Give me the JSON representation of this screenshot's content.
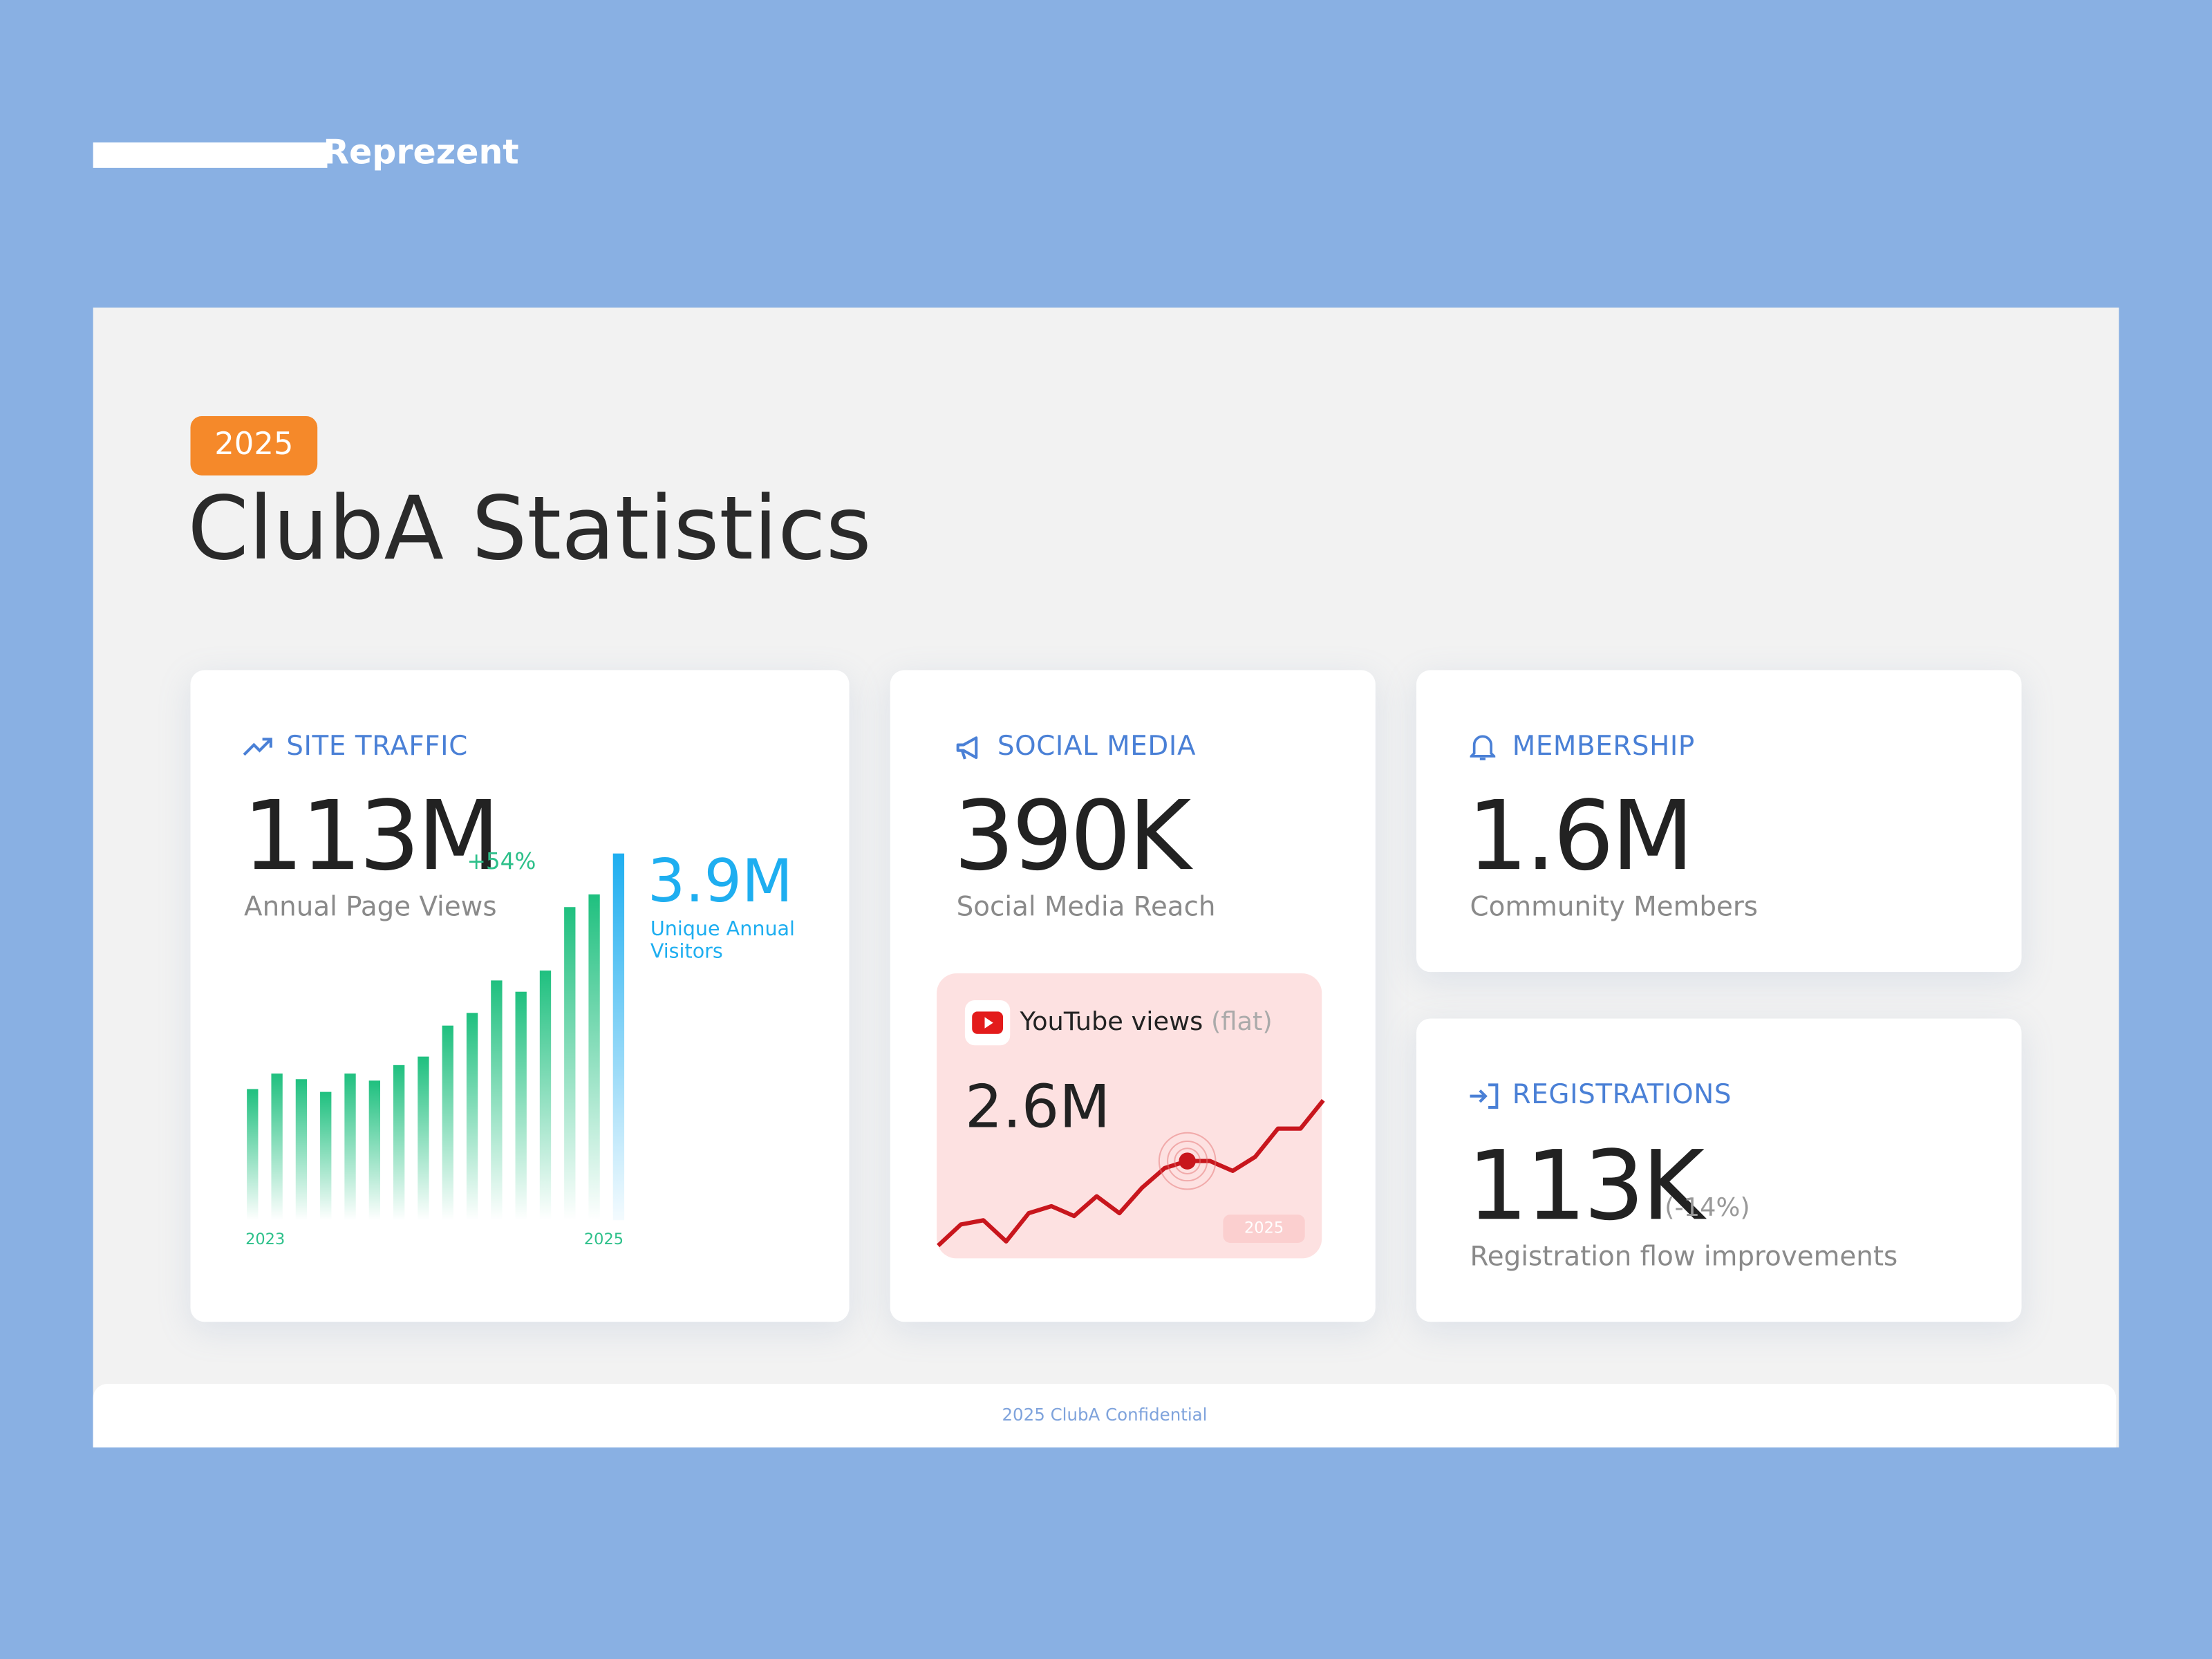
{
  "logo": "Reprezent",
  "badge": "2025",
  "title": "ClubA Statistics",
  "cards": {
    "site_traffic": {
      "heading": "SITE TRAFFIC",
      "value": "113M",
      "change": "+54%",
      "label": "Annual Page Views",
      "secondary_value": "3.9M",
      "secondary_label": "Unique Annual Visitors",
      "chart": {
        "type": "bar",
        "values": [
          93,
          104,
          100,
          91,
          104,
          99,
          110,
          116,
          138,
          147,
          170,
          162,
          177,
          222,
          231,
          260
        ],
        "x_start": "2023",
        "x_end": "2025"
      }
    },
    "social_media": {
      "heading": "SOCIAL MEDIA",
      "value": "390K",
      "label": "Social Media Reach",
      "youtube": {
        "label": "YouTube views",
        "note": "(flat)",
        "value": "2.6M",
        "chart": {
          "type": "line",
          "values": [
            17,
            32,
            35,
            20,
            40,
            45,
            38,
            52,
            40,
            58,
            72,
            77,
            77,
            70,
            80,
            100,
            100,
            120
          ],
          "highlight": 11,
          "tag": "2025"
        }
      }
    },
    "membership": {
      "heading": "MEMBERSHIP",
      "value": "1.6M",
      "label": "Community Members"
    },
    "registrations": {
      "heading": "REGISTRATIONS",
      "value": "113K",
      "change": "(-14%)",
      "label": "Registration flow improvements"
    }
  },
  "footer": "2025 ClubA Confidential"
}
